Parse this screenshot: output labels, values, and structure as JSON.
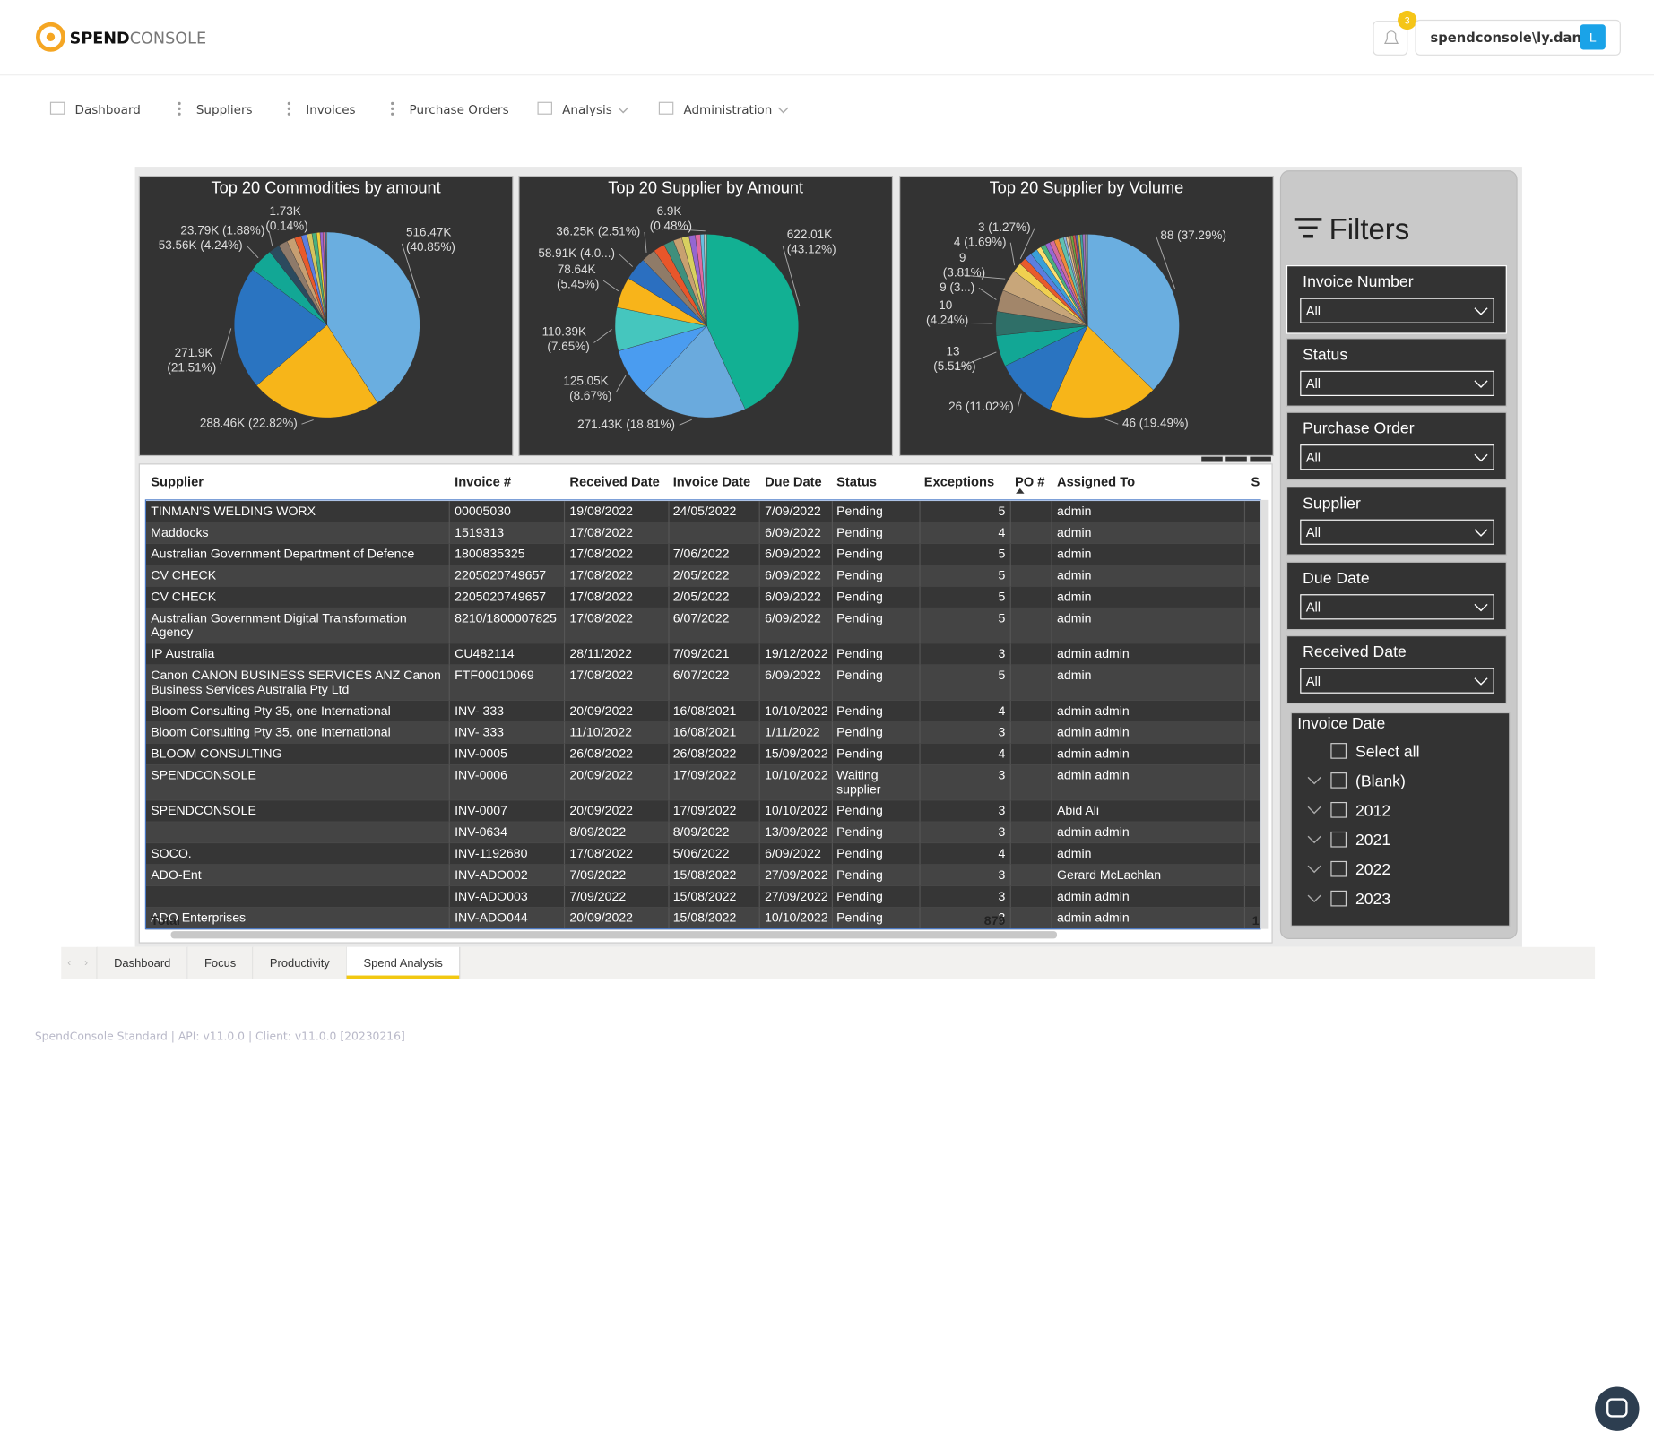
{
  "header": {
    "logo_bold": "SPEND",
    "logo_light": "CONSOLE",
    "notification_count": "3",
    "user": "spendconsole\\ly.dan",
    "avatar": "L"
  },
  "nav": [
    "Dashboard",
    "Suppliers",
    "Invoices",
    "Purchase Orders",
    "Analysis",
    "Administration"
  ],
  "charts": [
    {
      "type": "pie",
      "title": "Top 20 Commodities by amount",
      "values": [
        40.85,
        22.82,
        21.51,
        4.24,
        1.88,
        1.6,
        1.4,
        1.2,
        1.0,
        0.9,
        0.8,
        0.6,
        0.5,
        0.4,
        0.16,
        0.14
      ],
      "labels": [
        "516.47K (40.85%)",
        "288.46K (22.82%)",
        "271.9K (21.51%)",
        "53.56K (4.24%)",
        "23.79K (1.88%)",
        null,
        null,
        null,
        null,
        null,
        null,
        null,
        null,
        null,
        null,
        "1.73K (0.14%)"
      ],
      "colors": [
        "#6aaee0",
        "#f7b519",
        "#2a74c1",
        "#12a795",
        "#2c4a5e",
        "#8e7a6a",
        "#c79f72",
        "#e85a2c",
        "#5b7ee0",
        "#d6c45e",
        "#49b07e",
        "#f0cf3a",
        "#9a66d2",
        "#d46a9a",
        "#3d8ec9",
        "#b4b4b4"
      ]
    },
    {
      "type": "pie",
      "title": "Top 20 Supplier by Amount",
      "values": [
        43.12,
        18.81,
        8.67,
        7.65,
        5.45,
        4.08,
        2.51,
        2.0,
        1.8,
        1.5,
        1.3,
        1.1,
        0.9,
        0.63,
        0.48
      ],
      "labels": [
        "622.01K (43.12%)",
        "271.43K (18.81%)",
        "125.05K (8.67%)",
        "110.39K (7.65%)",
        "78.64K (5.45%)",
        "58.91K (4.0...)",
        "36.25K (2.51%)",
        null,
        null,
        null,
        null,
        null,
        null,
        null,
        "6.9K (0.48%)"
      ],
      "colors": [
        "#12b093",
        "#6aaadd",
        "#4a9cf0",
        "#45c6be",
        "#f8b41a",
        "#2b6fc0",
        "#8f7b68",
        "#e8562a",
        "#3f8f7c",
        "#c8a070",
        "#d8d060",
        "#9566d0",
        "#e06aa0",
        "#66c0e0",
        "#c0c0c0"
      ]
    },
    {
      "type": "pie",
      "title": "Top 20 Supplier by Volume",
      "values": [
        37.29,
        19.49,
        11.02,
        5.51,
        4.24,
        3.81,
        3.81,
        1.69,
        1.27,
        1.27,
        1.27,
        0.85,
        0.85,
        0.85,
        0.85,
        0.85,
        0.85,
        0.42,
        0.42,
        0.42,
        0.42,
        0.42,
        0.42,
        0.42,
        0.42,
        0.42,
        0.45
      ],
      "labels": [
        "88 (37.29%)",
        "46 (19.49%)",
        "26 (11.02%)",
        "13 (5.51%)",
        "10 (4.24%)",
        "9 (3...)",
        "9 (3.81%)",
        "4 (1.69%)",
        "3 (1.27%)",
        null,
        null,
        null,
        null,
        null,
        null,
        null,
        null,
        null,
        null,
        null,
        null,
        null,
        null,
        null,
        null,
        null,
        null
      ],
      "colors": [
        "#6aaee0",
        "#f7b519",
        "#2a74c1",
        "#12a795",
        "#2f6f68",
        "#a2866a",
        "#c8a67a",
        "#f0d050",
        "#e85a2c",
        "#5b7ee0",
        "#3a9fd8",
        "#ffe070",
        "#49b07e",
        "#9a66d2",
        "#d46a9a",
        "#f08a3a",
        "#60c0b0",
        "#8ab0e0",
        "#e0c090",
        "#b08060",
        "#70a040",
        "#d05050",
        "#5060a0",
        "#c0c040",
        "#40a0a0",
        "#a070c0",
        "#909090"
      ]
    }
  ],
  "table": {
    "columns": [
      "Supplier",
      "Invoice #",
      "Received Date",
      "Invoice Date",
      "Due Date",
      "Status",
      "Exceptions",
      "PO #",
      "Assigned To",
      "S"
    ],
    "rows": [
      [
        "TINMAN'S WELDING WORX",
        "00005030",
        "19/08/2022",
        "24/05/2022",
        "7/09/2022",
        "Pending",
        5,
        null,
        "admin"
      ],
      [
        "Maddocks",
        "1519313",
        "17/08/2022",
        null,
        "6/09/2022",
        "Pending",
        4,
        null,
        "admin"
      ],
      [
        "Australian Government Department of Defence",
        "1800835325",
        "17/08/2022",
        "7/06/2022",
        "6/09/2022",
        "Pending",
        5,
        null,
        "admin"
      ],
      [
        "CV CHECK",
        "2205020749657",
        "17/08/2022",
        "2/05/2022",
        "6/09/2022",
        "Pending",
        5,
        null,
        "admin"
      ],
      [
        "CV CHECK",
        "2205020749657",
        "17/08/2022",
        "2/05/2022",
        "6/09/2022",
        "Pending",
        5,
        null,
        "admin"
      ],
      [
        "Australian Government Digital Transformation Agency",
        "8210/1800007825",
        "17/08/2022",
        "6/07/2022",
        "6/09/2022",
        "Pending",
        5,
        null,
        "admin"
      ],
      [
        "IP Australia",
        "CU482114",
        "28/11/2022",
        "7/09/2021",
        "19/12/2022",
        "Pending",
        3,
        null,
        "admin admin"
      ],
      [
        "Canon CANON BUSINESS SERVICES ANZ Canon Business Services Australia Pty Ltd",
        "FTF00010069",
        "17/08/2022",
        "6/07/2022",
        "6/09/2022",
        "Pending",
        5,
        null,
        "admin"
      ],
      [
        "Bloom Consulting Pty 35, one International",
        "INV- 333",
        "20/09/2022",
        "16/08/2021",
        "10/10/2022",
        "Pending",
        4,
        null,
        "admin admin"
      ],
      [
        "Bloom Consulting Pty 35, one International",
        "INV- 333",
        "11/10/2022",
        "16/08/2021",
        "1/11/2022",
        "Pending",
        3,
        null,
        "admin admin"
      ],
      [
        "BLOOM CONSULTING",
        "INV-0005",
        "26/08/2022",
        "26/08/2022",
        "15/09/2022",
        "Pending",
        4,
        null,
        "admin admin"
      ],
      [
        "SPENDCONSOLE",
        "INV-0006",
        "20/09/2022",
        "17/09/2022",
        "10/10/2022",
        "Waiting supplier",
        3,
        null,
        "admin admin"
      ],
      [
        "SPENDCONSOLE",
        "INV-0007",
        "20/09/2022",
        "17/09/2022",
        "10/10/2022",
        "Pending",
        3,
        null,
        "Abid Ali"
      ],
      [
        null,
        "INV-0634",
        "8/09/2022",
        "8/09/2022",
        "13/09/2022",
        "Pending",
        3,
        null,
        "admin admin"
      ],
      [
        "SOCO.",
        "INV-1192680",
        "17/08/2022",
        "5/06/2022",
        "6/09/2022",
        "Pending",
        4,
        null,
        "admin"
      ],
      [
        "ADO-Ent",
        "INV-ADO002",
        "7/09/2022",
        "15/08/2022",
        "27/09/2022",
        "Pending",
        3,
        null,
        "Gerard McLachlan"
      ],
      [
        null,
        "INV-ADO003",
        "7/09/2022",
        "15/08/2022",
        "27/09/2022",
        "Pending",
        3,
        null,
        "admin admin"
      ],
      [
        "ADO Enterprises",
        "INV-ADO044",
        "20/09/2022",
        "15/08/2022",
        "10/10/2022",
        "Pending",
        3,
        null,
        "admin admin"
      ]
    ],
    "total_label": "Total",
    "total_exceptions": 879,
    "total_s": "1"
  },
  "filters": {
    "title": "Filters",
    "dropdowns": [
      {
        "label": "Invoice Number",
        "value": "All"
      },
      {
        "label": "Status",
        "value": "All"
      },
      {
        "label": "Purchase Order",
        "value": "All"
      },
      {
        "label": "Supplier",
        "value": "All"
      },
      {
        "label": "Due Date",
        "value": "All"
      },
      {
        "label": "Received Date",
        "value": "All"
      }
    ],
    "invoice_date": {
      "label": "Invoice Date",
      "options": [
        "Select all",
        "(Blank)",
        "2012",
        "2021",
        "2022",
        "2023"
      ]
    }
  },
  "tabs": [
    "Dashboard",
    "Focus",
    "Productivity",
    "Spend Analysis"
  ],
  "active_tab": 3,
  "footer": "SpendConsole Standard | API: v11.0.0 | Client: v11.0.0 [20230216]"
}
